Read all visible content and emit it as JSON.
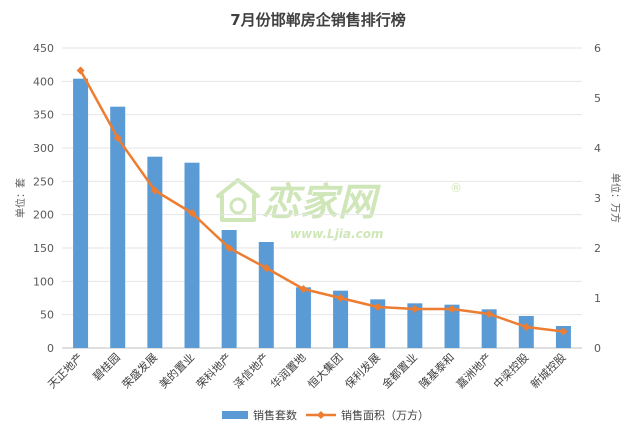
{
  "chart_data": {
    "type": "bar",
    "title": "7月份邯郸房企销售排行榜",
    "categories": [
      "天正地产",
      "碧桂园",
      "荣盛发展",
      "美的置业",
      "荣科地产",
      "泽信地产",
      "华润置地",
      "恒大集团",
      "保利发展",
      "金都置业",
      "隆基泰和",
      "嘉洲地产",
      "中梁控股",
      "新城控股"
    ],
    "series": [
      {
        "name": "销售套数",
        "type": "bar",
        "axis": "left",
        "color": "#5b9bd5",
        "values": [
          404,
          362,
          287,
          278,
          177,
          159,
          91,
          86,
          73,
          67,
          65,
          58,
          48,
          33
        ]
      },
      {
        "name": "销售面积（万方）",
        "type": "line",
        "axis": "right",
        "color": "#ed7d31",
        "values": [
          5.55,
          4.2,
          3.15,
          2.7,
          2.0,
          1.6,
          1.18,
          1.0,
          0.82,
          0.78,
          0.78,
          0.68,
          0.42,
          0.33
        ]
      }
    ],
    "ylabel": "单位：套",
    "y2label": "单位：万方",
    "ylim": [
      0,
      450
    ],
    "y2lim": [
      0,
      6
    ],
    "yticks": [
      0,
      50,
      100,
      150,
      200,
      250,
      300,
      350,
      400,
      450
    ],
    "y2ticks": [
      0,
      1,
      2,
      3,
      4,
      5,
      6
    ],
    "grid": true,
    "legend_position": "bottom"
  },
  "watermark": {
    "main": "恋家网",
    "sub": "www.Ljia.com",
    "mark": "®"
  }
}
